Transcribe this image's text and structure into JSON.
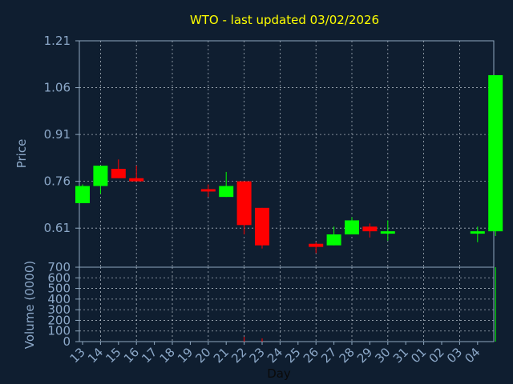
{
  "chart_data": [
    {
      "type": "candlestick",
      "title": "WTO - last updated 03/02/2026",
      "ylabel": "Price",
      "xlabel": "",
      "y_ticks": [
        0.61,
        0.76,
        0.91,
        1.06,
        1.21
      ],
      "y_tick_labels": [
        "0.61",
        "0.76",
        "0.91",
        "1.06",
        "1.21"
      ],
      "ylim": [
        0.485,
        1.21
      ],
      "x_tick_labels": [
        "13",
        "14",
        "15",
        "16",
        "17",
        "18",
        "19",
        "20",
        "21",
        "22",
        "23",
        "24",
        "25",
        "26",
        "27",
        "28",
        "29",
        "30",
        "31",
        "01",
        "02",
        "03",
        "04"
      ],
      "grid": true,
      "up_color": "#00ff00",
      "down_color": "#ff0000",
      "candles": [
        {
          "x": 0,
          "open": 0.69,
          "high": 0.75,
          "low": 0.69,
          "close": 0.745
        },
        {
          "x": 1,
          "open": 0.745,
          "high": 0.81,
          "low": 0.72,
          "close": 0.81
        },
        {
          "x": 2,
          "open": 0.8,
          "high": 0.83,
          "low": 0.77,
          "close": 0.77
        },
        {
          "x": 3,
          "open": 0.77,
          "high": 0.81,
          "low": 0.76,
          "close": 0.76
        },
        {
          "x": 7,
          "open": 0.735,
          "high": 0.75,
          "low": 0.71,
          "close": 0.73
        },
        {
          "x": 8,
          "open": 0.71,
          "high": 0.79,
          "low": 0.71,
          "close": 0.745
        },
        {
          "x": 9,
          "open": 0.76,
          "high": 0.76,
          "low": 0.59,
          "close": 0.62
        },
        {
          "x": 10,
          "open": 0.675,
          "high": 0.675,
          "low": 0.545,
          "close": 0.555
        },
        {
          "x": 13,
          "open": 0.56,
          "high": 0.565,
          "low": 0.53,
          "close": 0.55
        },
        {
          "x": 14,
          "open": 0.555,
          "high": 0.615,
          "low": 0.555,
          "close": 0.59
        },
        {
          "x": 15,
          "open": 0.59,
          "high": 0.645,
          "low": 0.59,
          "close": 0.635
        },
        {
          "x": 16,
          "open": 0.615,
          "high": 0.625,
          "low": 0.58,
          "close": 0.6
        },
        {
          "x": 17,
          "open": 0.595,
          "high": 0.635,
          "low": 0.57,
          "close": 0.6
        },
        {
          "x": 22,
          "open": 0.595,
          "high": 0.615,
          "low": 0.565,
          "close": 0.6
        },
        {
          "x": 23,
          "open": 0.6,
          "high": 1.1,
          "low": 0.585,
          "close": 1.1
        }
      ]
    },
    {
      "type": "bar",
      "ylabel": "Volume (0000)",
      "xlabel": "Day",
      "y_ticks": [
        0,
        100,
        200,
        300,
        400,
        500,
        600,
        700
      ],
      "y_tick_labels": [
        "0",
        "100",
        "200",
        "300",
        "400",
        "500",
        "600",
        "700"
      ],
      "ylim": [
        0,
        700
      ],
      "x_tick_labels": [
        "13",
        "14",
        "15",
        "16",
        "17",
        "18",
        "19",
        "20",
        "21",
        "22",
        "23",
        "24",
        "25",
        "26",
        "27",
        "28",
        "29",
        "30",
        "31",
        "01",
        "02",
        "03",
        "04"
      ],
      "grid": true,
      "bars": [
        {
          "x": 9,
          "value": 45,
          "color": "#ff0000"
        },
        {
          "x": 10,
          "value": 30,
          "color": "#ff0000"
        },
        {
          "x": 23,
          "value": 700,
          "color": "#00ff00"
        }
      ]
    }
  ]
}
